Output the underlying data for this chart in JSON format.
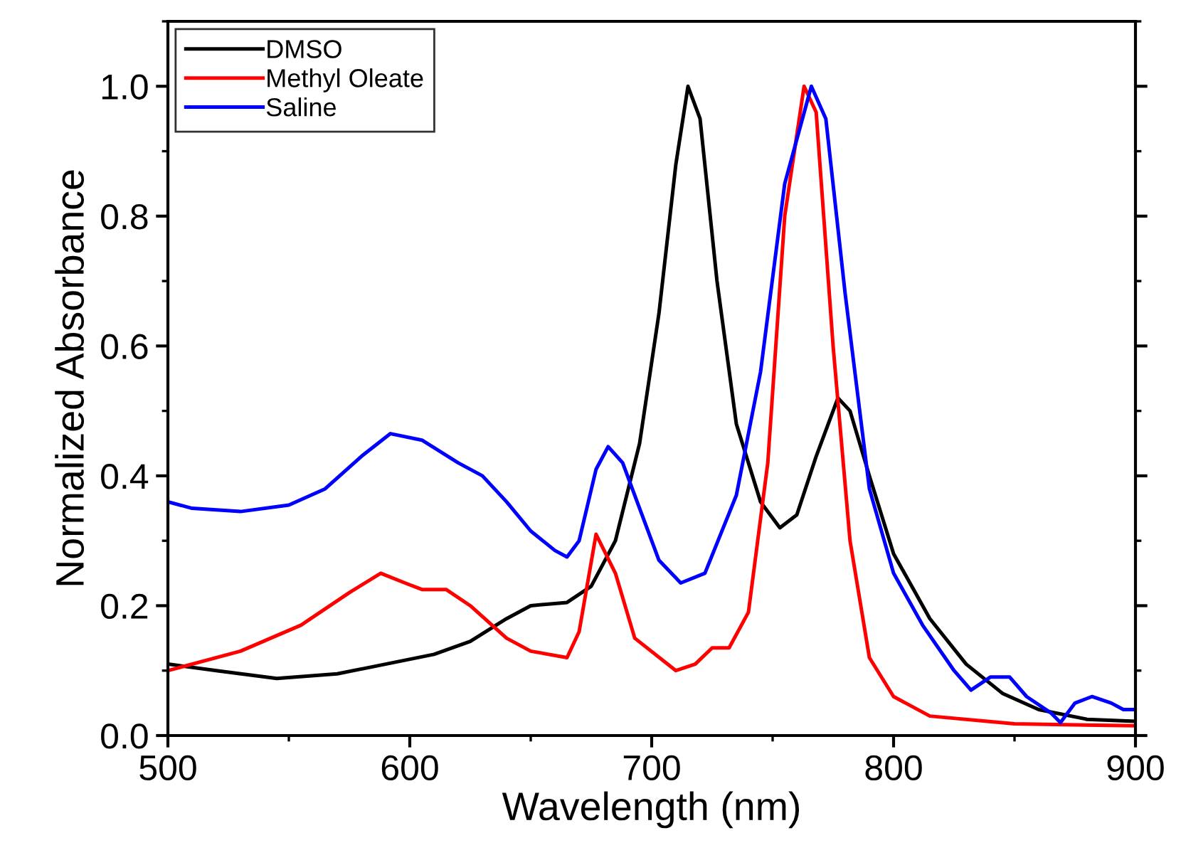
{
  "chart_data": {
    "type": "line",
    "xlabel": "Wavelength (nm)",
    "ylabel": "Normalized Absorbance",
    "xlim": [
      500,
      900
    ],
    "xticks": [
      500,
      600,
      700,
      800,
      900
    ],
    "ylim": [
      0,
      1.1
    ],
    "yticks": [
      {
        "value": 0,
        "label": "0.0"
      },
      {
        "value": 0.2,
        "label": "0.2"
      },
      {
        "value": 0.4,
        "label": "0.4"
      },
      {
        "value": 0.6,
        "label": "0.6"
      },
      {
        "value": 0.8,
        "label": "0.8"
      },
      {
        "value": 1.0,
        "label": "1.0"
      }
    ],
    "grid": false,
    "legend": "top left",
    "line_style": "solid",
    "marker": "none",
    "series": [
      {
        "name": "DMSO",
        "color": "#000000",
        "x": [
          500,
          520,
          545,
          570,
          590,
          610,
          625,
          640,
          650,
          665,
          675,
          685,
          695,
          703,
          710,
          715,
          720,
          727,
          735,
          745,
          753,
          760,
          768,
          777,
          782,
          790,
          800,
          815,
          830,
          845,
          860,
          880,
          900
        ],
        "values": [
          0.11,
          0.1,
          0.088,
          0.095,
          0.11,
          0.125,
          0.145,
          0.18,
          0.2,
          0.205,
          0.23,
          0.3,
          0.45,
          0.65,
          0.88,
          1.0,
          0.95,
          0.7,
          0.48,
          0.36,
          0.32,
          0.34,
          0.43,
          0.52,
          0.5,
          0.4,
          0.28,
          0.18,
          0.11,
          0.065,
          0.04,
          0.025,
          0.022
        ]
      },
      {
        "name": "Methyl Oleate",
        "color": "#ff0000",
        "x": [
          500,
          530,
          555,
          575,
          588,
          598,
          605,
          615,
          625,
          640,
          650,
          665,
          670,
          677,
          685,
          693,
          710,
          718,
          725,
          732,
          740,
          748,
          755,
          763,
          768,
          775,
          782,
          790,
          800,
          815,
          850,
          900
        ],
        "values": [
          0.1,
          0.13,
          0.17,
          0.22,
          0.25,
          0.235,
          0.225,
          0.225,
          0.2,
          0.15,
          0.13,
          0.12,
          0.16,
          0.31,
          0.25,
          0.15,
          0.1,
          0.11,
          0.135,
          0.135,
          0.19,
          0.42,
          0.8,
          1.0,
          0.96,
          0.6,
          0.3,
          0.12,
          0.06,
          0.03,
          0.018,
          0.015
        ]
      },
      {
        "name": "Saline",
        "color": "#0000ff",
        "x": [
          500,
          510,
          530,
          550,
          565,
          580,
          592,
          605,
          620,
          630,
          640,
          650,
          660,
          665,
          670,
          677,
          682,
          688,
          695,
          703,
          712,
          722,
          735,
          745,
          755,
          766,
          772,
          780,
          790,
          800,
          812,
          825,
          832,
          840,
          848,
          855,
          865,
          869,
          875,
          882,
          890,
          895,
          900
        ],
        "values": [
          0.36,
          0.35,
          0.345,
          0.355,
          0.38,
          0.43,
          0.465,
          0.455,
          0.42,
          0.4,
          0.36,
          0.315,
          0.285,
          0.275,
          0.3,
          0.41,
          0.445,
          0.42,
          0.35,
          0.27,
          0.235,
          0.25,
          0.37,
          0.56,
          0.85,
          1.0,
          0.95,
          0.68,
          0.38,
          0.25,
          0.17,
          0.1,
          0.07,
          0.09,
          0.09,
          0.06,
          0.035,
          0.02,
          0.05,
          0.06,
          0.05,
          0.04,
          0.04
        ]
      }
    ]
  }
}
